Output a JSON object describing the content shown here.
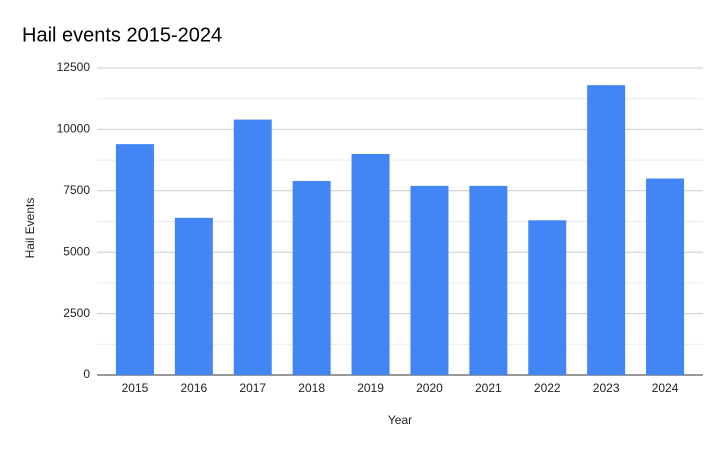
{
  "chart_data": {
    "type": "bar",
    "title": "Hail events 2015-2024",
    "x_label": "Year",
    "y_label": "Hail Events",
    "categories": [
      "2015",
      "2016",
      "2017",
      "2018",
      "2019",
      "2020",
      "2021",
      "2022",
      "2023",
      "2024"
    ],
    "values": [
      9400,
      6400,
      10400,
      7900,
      9000,
      7700,
      7700,
      6300,
      11800,
      8000
    ],
    "color": "#4285f4",
    "ylim": [
      0,
      12500
    ],
    "yticks": [
      0,
      2500,
      5000,
      7500,
      10000,
      12500
    ],
    "minor_yticks": [
      1250,
      3750,
      6250,
      8750,
      11250
    ],
    "grid": true
  }
}
